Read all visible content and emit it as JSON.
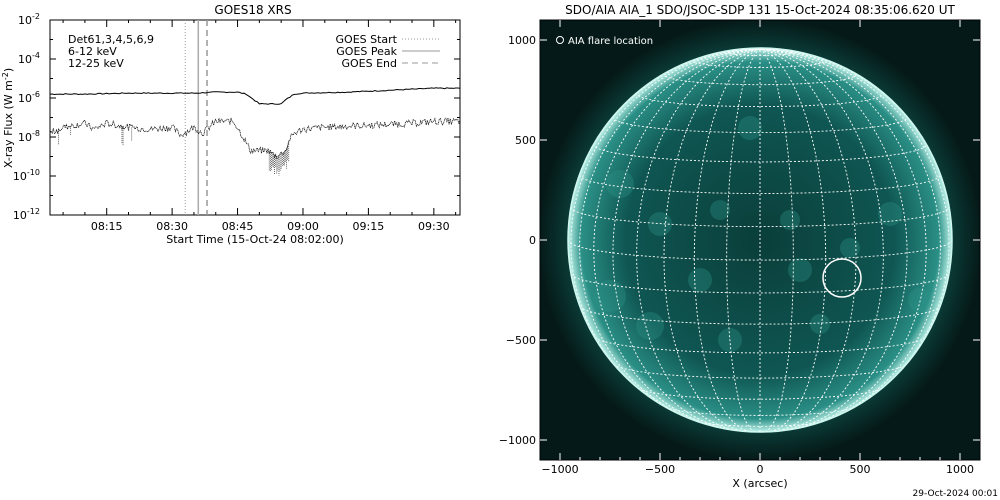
{
  "chart_data": [
    {
      "type": "line",
      "title": "GOES18 XRS",
      "xlabel": "Start Time (15-Oct-24 08:02:00)",
      "ylabel": "X-ray Flux (W m",
      "ylabel_exp": "-2",
      "ylabel_close": ")",
      "y_scale": "log",
      "ylim_exp": [
        -12,
        -2
      ],
      "y_ticks": [
        {
          "base": "10",
          "exp": "-12",
          "value": -12
        },
        {
          "base": "10",
          "exp": "-10",
          "value": -10
        },
        {
          "base": "10",
          "exp": "-8",
          "value": -8
        },
        {
          "base": "10",
          "exp": "-6",
          "value": -6
        },
        {
          "base": "10",
          "exp": "-4",
          "value": -4
        },
        {
          "base": "10",
          "exp": "-2",
          "value": -2
        }
      ],
      "x_range": [
        "08:02",
        "09:38"
      ],
      "x_ticks": [
        {
          "label": "08:15",
          "minute": 15
        },
        {
          "label": "08:30",
          "minute": 30
        },
        {
          "label": "08:45",
          "minute": 45
        },
        {
          "label": "09:00",
          "minute": 60
        },
        {
          "label": "09:15",
          "minute": 75
        },
        {
          "label": "09:30",
          "minute": 90
        }
      ],
      "annotations": {
        "detector": "Det61,3,4,5,6,9",
        "band_low": "6-12 keV",
        "band_high": "12-25 keV"
      },
      "colors": {
        "band_low": "#ff00ff",
        "band_high": "#00ff00"
      },
      "legend": {
        "placement": "top-right",
        "items": [
          {
            "label": "GOES Start",
            "style": "dotted"
          },
          {
            "label": "GOES Peak",
            "style": "solid"
          },
          {
            "label": "GOES End",
            "style": "dashed"
          }
        ]
      },
      "event_lines": {
        "start": "08:33",
        "peak": "08:36",
        "end": "08:38"
      },
      "series": [
        {
          "band": "long",
          "minutes": [
            2,
            10,
            20,
            30,
            35,
            40,
            45,
            47,
            50,
            55,
            56,
            58,
            60,
            70,
            80,
            90,
            96
          ],
          "log_flux": [
            -5.8,
            -5.8,
            -5.75,
            -5.75,
            -5.75,
            -5.7,
            -5.7,
            -5.8,
            -6.3,
            -6.3,
            -6.1,
            -5.8,
            -5.75,
            -5.7,
            -5.6,
            -5.5,
            -5.5
          ]
        },
        {
          "band": "short",
          "minutes": [
            2,
            5,
            10,
            12,
            15,
            20,
            25,
            30,
            32,
            35,
            37,
            40,
            44,
            45,
            46,
            48,
            52,
            54,
            56,
            57,
            58,
            60,
            65,
            70,
            75,
            80,
            85,
            90,
            96
          ],
          "log_flux": [
            -7.8,
            -7.5,
            -7.3,
            -7.6,
            -7.3,
            -7.5,
            -7.6,
            -7.5,
            -7.9,
            -7.5,
            -7.8,
            -7.2,
            -7.2,
            -7.5,
            -7.9,
            -8.7,
            -8.7,
            -9.0,
            -8.7,
            -8.1,
            -7.8,
            -7.6,
            -7.5,
            -7.45,
            -7.4,
            -7.35,
            -7.3,
            -7.2,
            -7.2
          ]
        }
      ]
    },
    {
      "type": "scatter",
      "title": "SDO/AIA AIA_1 SDO/JSOC-SDP 131 15-Oct-2024 08:35:06.620 UT",
      "xlabel": "X (arcsec)",
      "ylabel": "",
      "xlim": [
        -1100,
        1100
      ],
      "ylim": [
        -1100,
        1100
      ],
      "x_ticks": [
        -1000,
        -500,
        0,
        500,
        1000
      ],
      "y_ticks": [
        -1000,
        -500,
        0,
        500,
        1000
      ],
      "x_tick_labels": [
        "−1000",
        "−500",
        "0",
        "500",
        "1000"
      ],
      "y_tick_labels": [
        "−1000",
        "−500",
        "0",
        "500",
        "1000"
      ],
      "legend": {
        "placement": "top-left",
        "label": "AIA flare location"
      },
      "flare_location": {
        "x": 410,
        "y": -190,
        "radius": 95
      },
      "solar_radius": 960,
      "grid": {
        "lat_step_deg": 10,
        "lon_step_deg": 10,
        "b0_deg": 6
      },
      "colors": {
        "disk": "#0d4743",
        "limb": "#cff7ef",
        "background": "#051a18",
        "grid": "#ffffff",
        "flare_marker": "#ffffff"
      },
      "footer": "29-Oct-2024 00:01"
    }
  ]
}
